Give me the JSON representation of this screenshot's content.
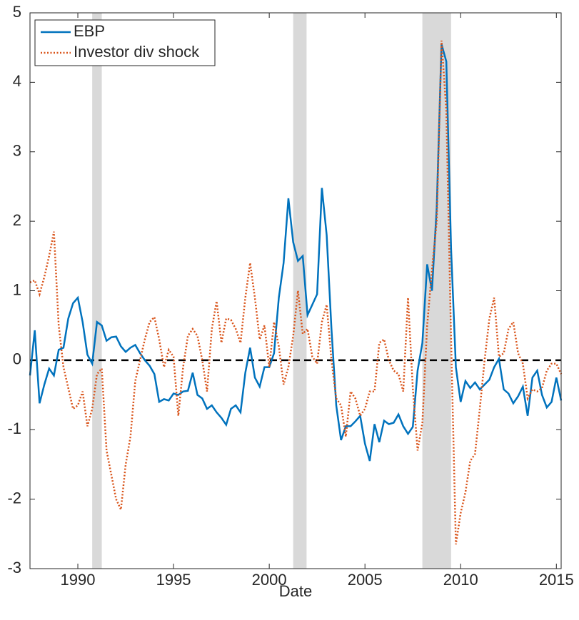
{
  "chart_data": {
    "type": "line",
    "x_label": "Date",
    "x": [
      1987.5,
      1987.75,
      1988,
      1988.25,
      1988.5,
      1988.75,
      1989,
      1989.25,
      1989.5,
      1989.75,
      1990,
      1990.25,
      1990.5,
      1990.75,
      1991,
      1991.25,
      1991.5,
      1991.75,
      1992,
      1992.25,
      1992.5,
      1992.75,
      1993,
      1993.25,
      1993.5,
      1993.75,
      1994,
      1994.25,
      1994.5,
      1994.75,
      1995,
      1995.25,
      1995.5,
      1995.75,
      1996,
      1996.25,
      1996.5,
      1996.75,
      1997,
      1997.25,
      1997.5,
      1997.75,
      1998,
      1998.25,
      1998.5,
      1998.75,
      1999,
      1999.25,
      1999.5,
      1999.75,
      2000,
      2000.25,
      2000.5,
      2000.75,
      2001,
      2001.25,
      2001.5,
      2001.75,
      2002,
      2002.25,
      2002.5,
      2002.75,
      2003,
      2003.25,
      2003.5,
      2003.75,
      2004,
      2004.25,
      2004.5,
      2004.75,
      2005,
      2005.25,
      2005.5,
      2005.75,
      2006,
      2006.25,
      2006.5,
      2006.75,
      2007,
      2007.25,
      2007.5,
      2007.75,
      2008,
      2008.25,
      2008.5,
      2008.75,
      2009,
      2009.25,
      2009.5,
      2009.75,
      2010,
      2010.25,
      2010.5,
      2010.75,
      2011,
      2011.25,
      2011.5,
      2011.75,
      2012,
      2012.25,
      2012.5,
      2012.75,
      2013,
      2013.25,
      2013.5,
      2013.75,
      2014,
      2014.25,
      2014.5,
      2014.75,
      2015,
      2015.25
    ],
    "series": [
      {
        "name": "EBP",
        "color": "#0072bd",
        "style": "solid",
        "values": [
          -0.22,
          0.43,
          -0.62,
          -0.35,
          -0.12,
          -0.22,
          0.15,
          0.18,
          0.6,
          0.82,
          0.9,
          0.55,
          0.08,
          -0.05,
          0.55,
          0.5,
          0.28,
          0.33,
          0.34,
          0.2,
          0.12,
          0.18,
          0.22,
          0.1,
          0,
          -0.08,
          -0.2,
          -0.6,
          -0.56,
          -0.58,
          -0.48,
          -0.5,
          -0.45,
          -0.44,
          -0.18,
          -0.5,
          -0.55,
          -0.7,
          -0.65,
          -0.75,
          -0.83,
          -0.93,
          -0.7,
          -0.65,
          -0.75,
          -0.18,
          0.18,
          -0.25,
          -0.38,
          -0.1,
          -0.1,
          0.1,
          0.9,
          1.4,
          2.33,
          1.7,
          1.43,
          1.5,
          0.65,
          0.8,
          0.95,
          2.48,
          1.8,
          0.45,
          -0.65,
          -1.15,
          -0.95,
          -0.95,
          -0.88,
          -0.8,
          -1.2,
          -1.45,
          -0.92,
          -1.18,
          -0.87,
          -0.92,
          -0.9,
          -0.78,
          -0.95,
          -1.06,
          -0.96,
          -0.15,
          0.25,
          1.38,
          1.0,
          2.2,
          4.55,
          4.3,
          1.6,
          -0.1,
          -0.6,
          -0.3,
          -0.4,
          -0.32,
          -0.42,
          -0.35,
          -0.28,
          -0.1,
          0.02,
          -0.42,
          -0.48,
          -0.62,
          -0.52,
          -0.38,
          -0.8,
          -0.25,
          -0.15,
          -0.5,
          -0.68,
          -0.6,
          -0.25,
          -0.58
        ]
      },
      {
        "name": "Investor div shock",
        "color": "#d95319",
        "style": "dotted",
        "values": [
          1.12,
          1.15,
          0.95,
          1.2,
          1.5,
          1.85,
          0.5,
          -0.1,
          -0.4,
          -0.7,
          -0.65,
          -0.45,
          -0.95,
          -0.7,
          -0.2,
          -0.12,
          -1.3,
          -1.65,
          -2.0,
          -2.15,
          -1.5,
          -1.1,
          -0.3,
          0.0,
          0.3,
          0.55,
          0.62,
          0.3,
          -0.1,
          0.15,
          0.05,
          -0.8,
          -0.1,
          0.35,
          0.45,
          0.35,
          0,
          -0.45,
          0.45,
          0.85,
          0.25,
          0.6,
          0.58,
          0.45,
          0.25,
          0.9,
          1.4,
          0.9,
          0.3,
          0.5,
          -0.1,
          0.55,
          0.2,
          -0.35,
          -0.1,
          0.35,
          1.0,
          0.38,
          0.45,
          0.05,
          -0.05,
          0.55,
          0.8,
          0.0,
          -0.55,
          -0.65,
          -1.1,
          -0.45,
          -0.55,
          -0.8,
          -0.7,
          -0.45,
          -0.45,
          0.25,
          0.3,
          0.0,
          -0.15,
          -0.2,
          -0.45,
          0.9,
          -0.4,
          -1.3,
          -0.9,
          0.5,
          1.3,
          2.0,
          4.6,
          3.6,
          0.3,
          -2.65,
          -2.2,
          -1.9,
          -1.45,
          -1.35,
          -0.7,
          0.0,
          0.6,
          0.9,
          0.05,
          0.1,
          0.45,
          0.55,
          0.1,
          -0.05,
          -0.55,
          -0.42,
          -0.45,
          -0.4,
          -0.15,
          -0.05,
          -0.05,
          -0.2
        ]
      }
    ],
    "recessions": [
      [
        1990.75,
        1991.25
      ],
      [
        2001.25,
        2001.95
      ],
      [
        2008.0,
        2009.5
      ]
    ],
    "recession_color": "#d9d9d9",
    "hline": 0,
    "xlim": [
      1987.5,
      2015.25
    ],
    "xticks": [
      1990,
      1995,
      2000,
      2005,
      2010,
      2015
    ],
    "ylim": [
      -3,
      5
    ],
    "yticks": [
      -3,
      -2,
      -1,
      0,
      1,
      2,
      3,
      4,
      5
    ],
    "legend": "upper left"
  }
}
